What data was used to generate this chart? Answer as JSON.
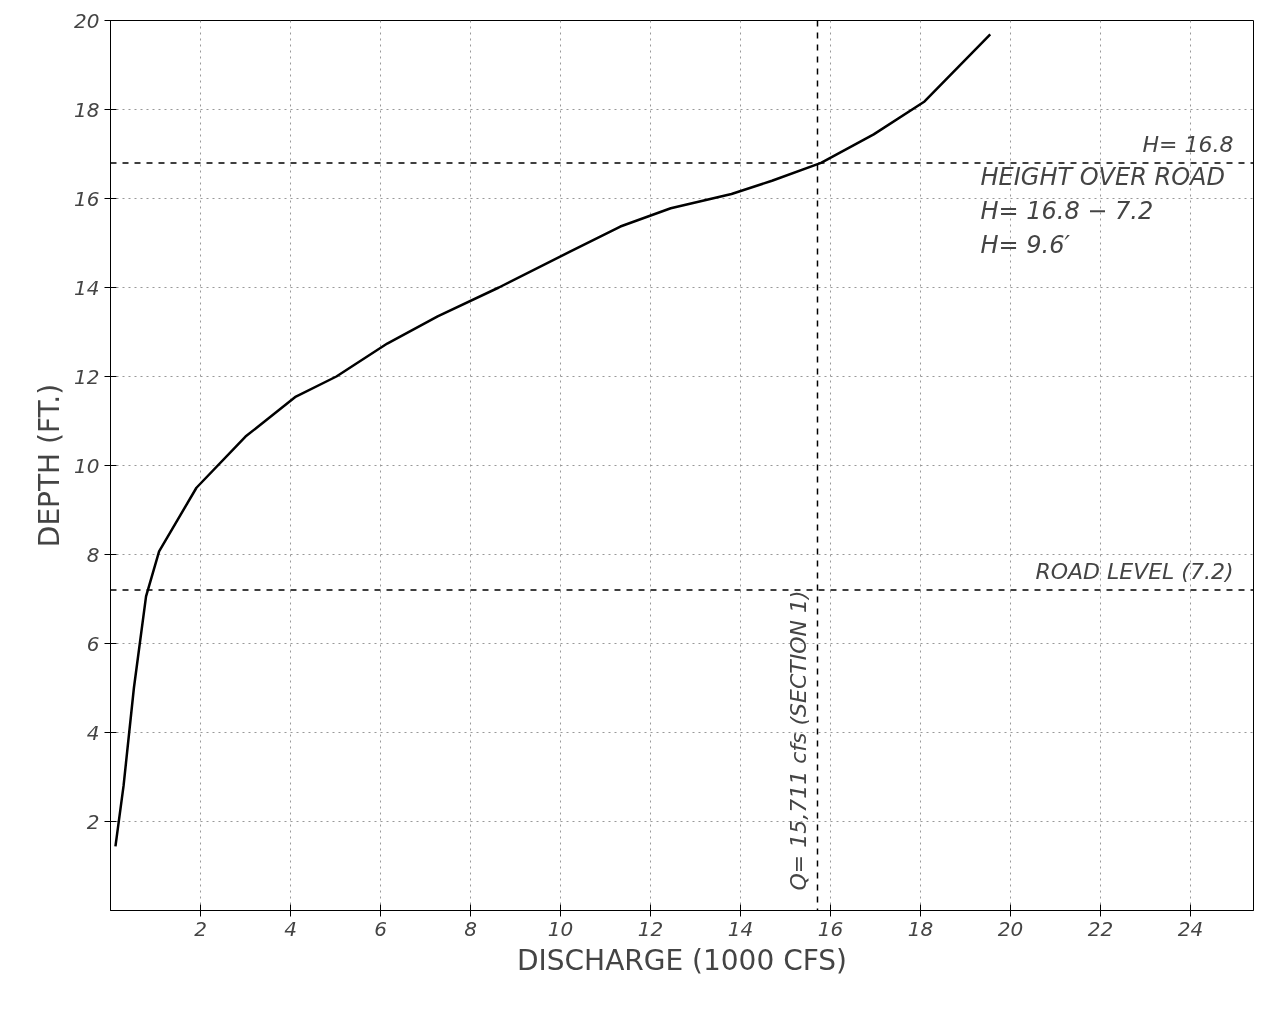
{
  "chart_data": {
    "type": "line",
    "xlabel": "DISCHARGE (1000 CFS)",
    "ylabel": "DEPTH (FT.)",
    "x": [
      0.11,
      0.29,
      0.52,
      0.79,
      1.08,
      1.91,
      3.0,
      4.12,
      5.02,
      6.15,
      7.27,
      8.63,
      10.2,
      11.33,
      12.45,
      13.8,
      14.7,
      15.79,
      16.96,
      18.09,
      19.55
    ],
    "series": [
      {
        "color": "#000000",
        "values": [
          1.44,
          2.8,
          5.0,
          7.06,
          8.07,
          9.5,
          10.65,
          11.55,
          12.0,
          12.74,
          13.35,
          14.0,
          14.8,
          15.37,
          15.78,
          16.1,
          16.4,
          16.8,
          17.44,
          18.18,
          19.69
        ]
      }
    ],
    "xlim": [
      0,
      25.4
    ],
    "ylim": [
      0,
      20
    ],
    "xticks": [
      2,
      4,
      6,
      8,
      10,
      12,
      14,
      16,
      18,
      20,
      22,
      24
    ],
    "yticks": [
      2,
      4,
      6,
      8,
      10,
      12,
      14,
      16,
      18,
      20
    ],
    "grid": true,
    "line_style": "solid",
    "marker": "none",
    "ref_lines": [
      {
        "axis": "y",
        "value": 16.8,
        "label": "H= 16.8",
        "line_style": "dashed",
        "color": "#000000"
      },
      {
        "axis": "y",
        "value": 7.2,
        "label": "ROAD LEVEL (7.2)",
        "line_style": "dashed",
        "color": "#000000"
      },
      {
        "axis": "x",
        "value": 15.711,
        "label": "Q= 15,711 cfs (SECTION 1)",
        "line_style": "dashed",
        "color": "#000000"
      }
    ],
    "annotations": [
      "HEIGHT OVER ROAD",
      "H= 16.8 − 7.2",
      "H= 9.6′"
    ]
  }
}
